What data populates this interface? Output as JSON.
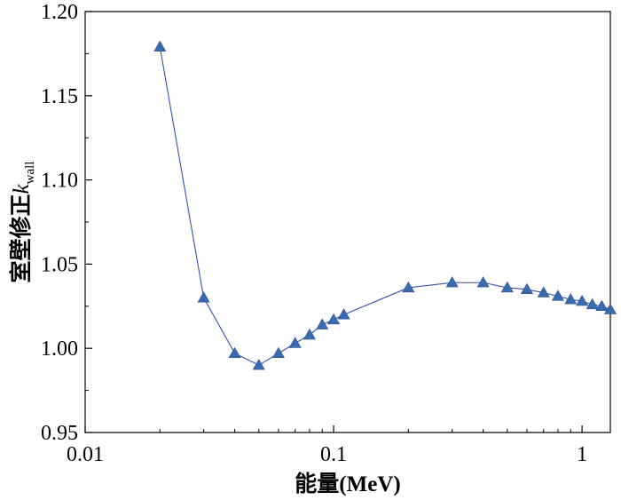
{
  "chart_data": {
    "type": "line",
    "xscale": "log",
    "xlim": [
      0.01,
      1.3
    ],
    "ylim": [
      0.95,
      1.2
    ],
    "xlabel": "能量(MeV)",
    "ylabel": {
      "prefix": "室壁修正",
      "symbol": "k",
      "subscript": "wall"
    },
    "x_ticks": [
      {
        "value": 0.01,
        "label": "0.01"
      },
      {
        "value": 0.1,
        "label": "0.1"
      },
      {
        "value": 1,
        "label": "1"
      }
    ],
    "y_ticks": [
      {
        "value": 0.95,
        "label": "0.95"
      },
      {
        "value": 1.0,
        "label": "1.00"
      },
      {
        "value": 1.05,
        "label": "1.05"
      },
      {
        "value": 1.1,
        "label": "1.10"
      },
      {
        "value": 1.15,
        "label": "1.15"
      },
      {
        "value": 1.2,
        "label": "1.20"
      }
    ],
    "grid": false,
    "series": [
      {
        "marker": "triangle",
        "line_color": "#3a4fa8",
        "marker_color": "#3a6bb0",
        "x": [
          0.02,
          0.03,
          0.04,
          0.05,
          0.06,
          0.07,
          0.08,
          0.09,
          0.1,
          0.11,
          0.2,
          0.3,
          0.4,
          0.5,
          0.6,
          0.7,
          0.8,
          0.9,
          1.0,
          1.1,
          1.2,
          1.3
        ],
        "y": [
          1.179,
          1.03,
          0.997,
          0.99,
          0.997,
          1.003,
          1.008,
          1.014,
          1.017,
          1.02,
          1.036,
          1.039,
          1.039,
          1.036,
          1.035,
          1.033,
          1.031,
          1.029,
          1.028,
          1.026,
          1.025,
          1.023
        ]
      }
    ]
  }
}
